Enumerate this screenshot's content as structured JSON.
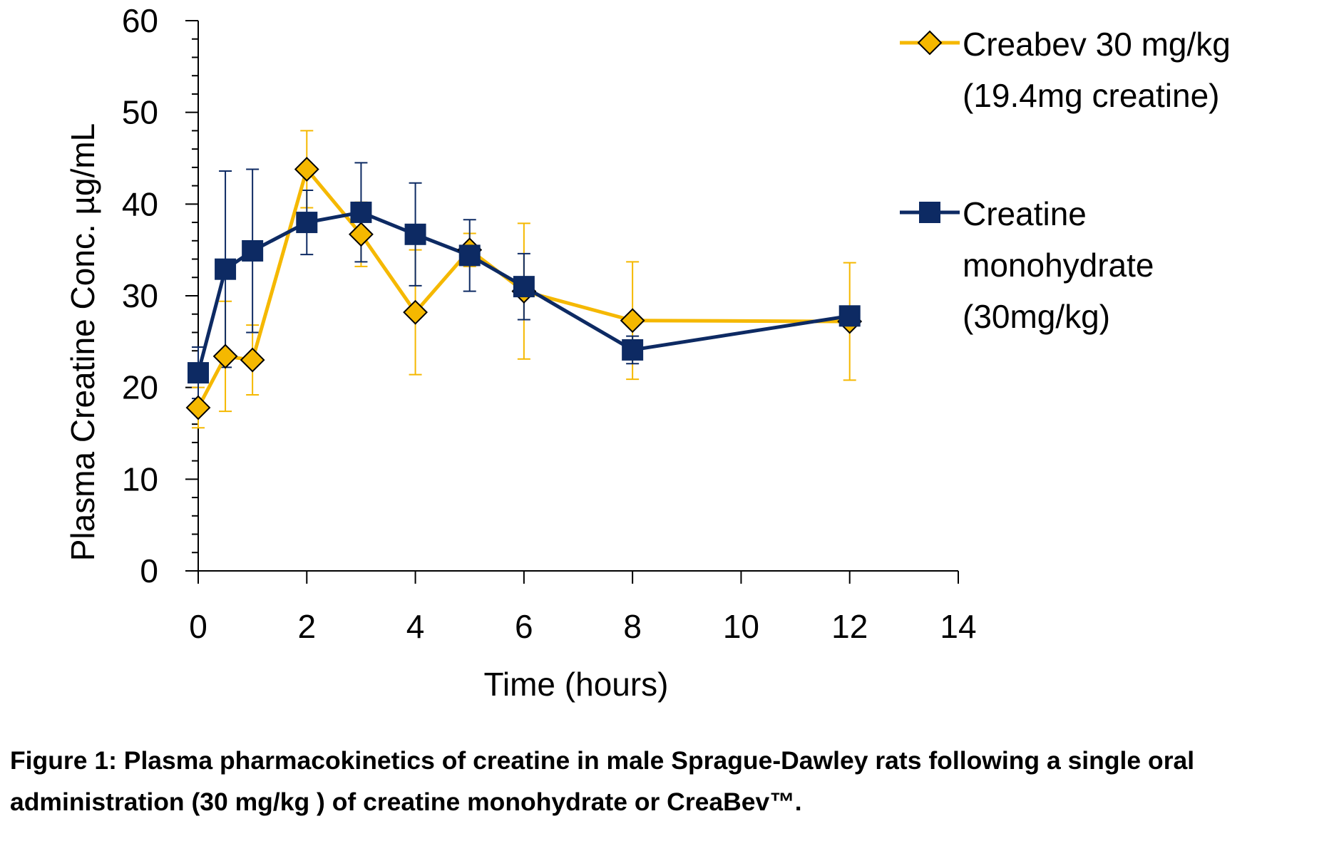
{
  "chart_data": {
    "type": "line",
    "xlabel": "Time (hours)",
    "ylabel": "Plasma Creatine Conc. µg/mL",
    "xlim": [
      0,
      14
    ],
    "ylim": [
      0,
      60
    ],
    "x_ticks": [
      "0",
      "2",
      "4",
      "6",
      "8",
      "10",
      "12",
      "14"
    ],
    "y_ticks": [
      "0",
      "10",
      "20",
      "30",
      "40",
      "50",
      "60"
    ],
    "grid": false,
    "legend_position": "right",
    "series": [
      {
        "name_lines": [
          "Creabev 30 mg/kg",
          "(19.4mg creatine)"
        ],
        "marker": "diamond",
        "color": "#f5b800",
        "x": [
          0,
          0.5,
          1,
          2,
          3,
          4,
          5,
          6,
          8,
          12
        ],
        "y": [
          17.8,
          23.4,
          23.0,
          43.8,
          36.7,
          28.2,
          35.0,
          30.5,
          27.3,
          27.2
        ],
        "error": [
          2.2,
          6.0,
          3.8,
          4.2,
          3.5,
          6.8,
          1.8,
          7.4,
          6.4,
          6.4
        ]
      },
      {
        "name_lines": [
          "Creatine",
          "monohydrate",
          "(30mg/kg)"
        ],
        "marker": "square",
        "color": "#0d2a63",
        "x": [
          0,
          0.5,
          1,
          2,
          3,
          4,
          5,
          6,
          8,
          12
        ],
        "y": [
          21.6,
          32.9,
          34.9,
          38.0,
          39.1,
          36.7,
          34.4,
          31.0,
          24.1,
          27.8
        ],
        "error": [
          2.8,
          10.7,
          8.9,
          3.5,
          5.4,
          5.6,
          3.9,
          3.6,
          1.5,
          0.3
        ]
      }
    ]
  },
  "caption": {
    "line1": "Figure 1: Plasma pharmacokinetics of creatine in male Sprague-Dawley rats following a single oral",
    "line2": "administration (30 mg/kg ) of creatine monohydrate or CreaBev™."
  }
}
